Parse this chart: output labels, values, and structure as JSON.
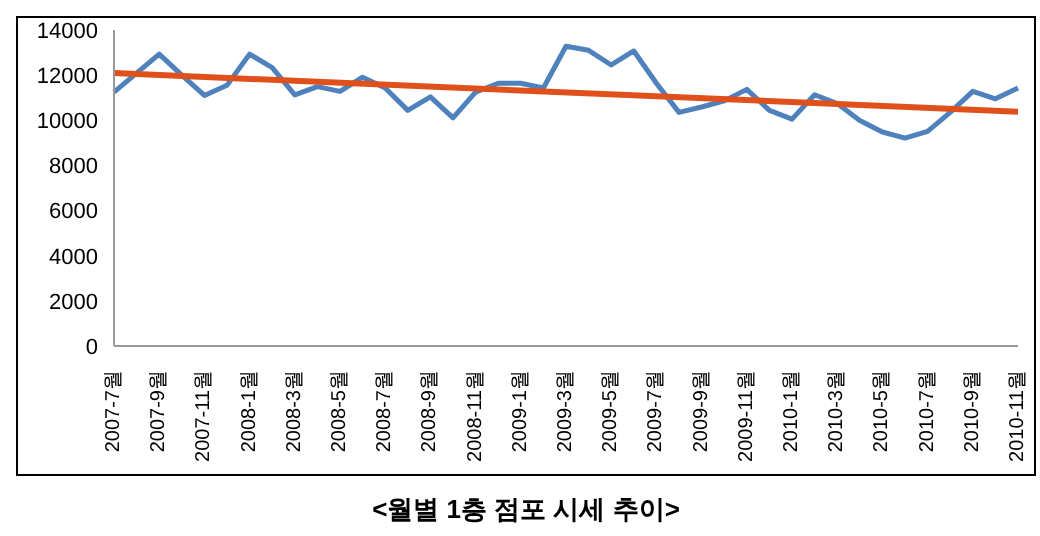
{
  "chart_data": {
    "type": "line",
    "title": "<월별 1층 점포 시세 추이>",
    "categories": [
      "2007-7월",
      null,
      "2007-9월",
      null,
      "2007-11월",
      null,
      "2008-1월",
      null,
      "2008-3월",
      null,
      "2008-5월",
      null,
      "2008-7월",
      null,
      "2008-9월",
      null,
      "2008-11월",
      null,
      "2009-1월",
      null,
      "2009-3월",
      null,
      "2009-5월",
      null,
      "2009-7월",
      null,
      "2009-9월",
      null,
      "2009-11월",
      null,
      "2010-1월",
      null,
      "2010-3월",
      null,
      "2010-5월",
      null,
      "2010-7월",
      null,
      "2010-9월",
      null,
      "2010-11월"
    ],
    "series": [
      {
        "color": "#4f81bd",
        "values": [
          11250,
          12090,
          12930,
          12000,
          11100,
          11550,
          12930,
          12330,
          11130,
          11490,
          11280,
          11910,
          11430,
          10440,
          11040,
          10110,
          11250,
          11640,
          11640,
          11430,
          13280,
          13100,
          12450,
          13070,
          11640,
          10350,
          10590,
          10860,
          11370,
          10440,
          10050,
          11130,
          10740,
          9990,
          9480,
          9210,
          9510,
          10350,
          11280,
          10950,
          11430
        ]
      },
      {
        "type": "line",
        "color": "#e0501a",
        "x": [
          "2007-7월",
          "2010-11월"
        ],
        "values": [
          12090,
          10380
        ]
      }
    ],
    "ylim": [
      0,
      14000
    ],
    "yticks": [
      0,
      2000,
      4000,
      6000,
      8000,
      10000,
      12000,
      14000
    ],
    "grid": false,
    "legend": false,
    "marker": "none",
    "line_style": "solid"
  }
}
